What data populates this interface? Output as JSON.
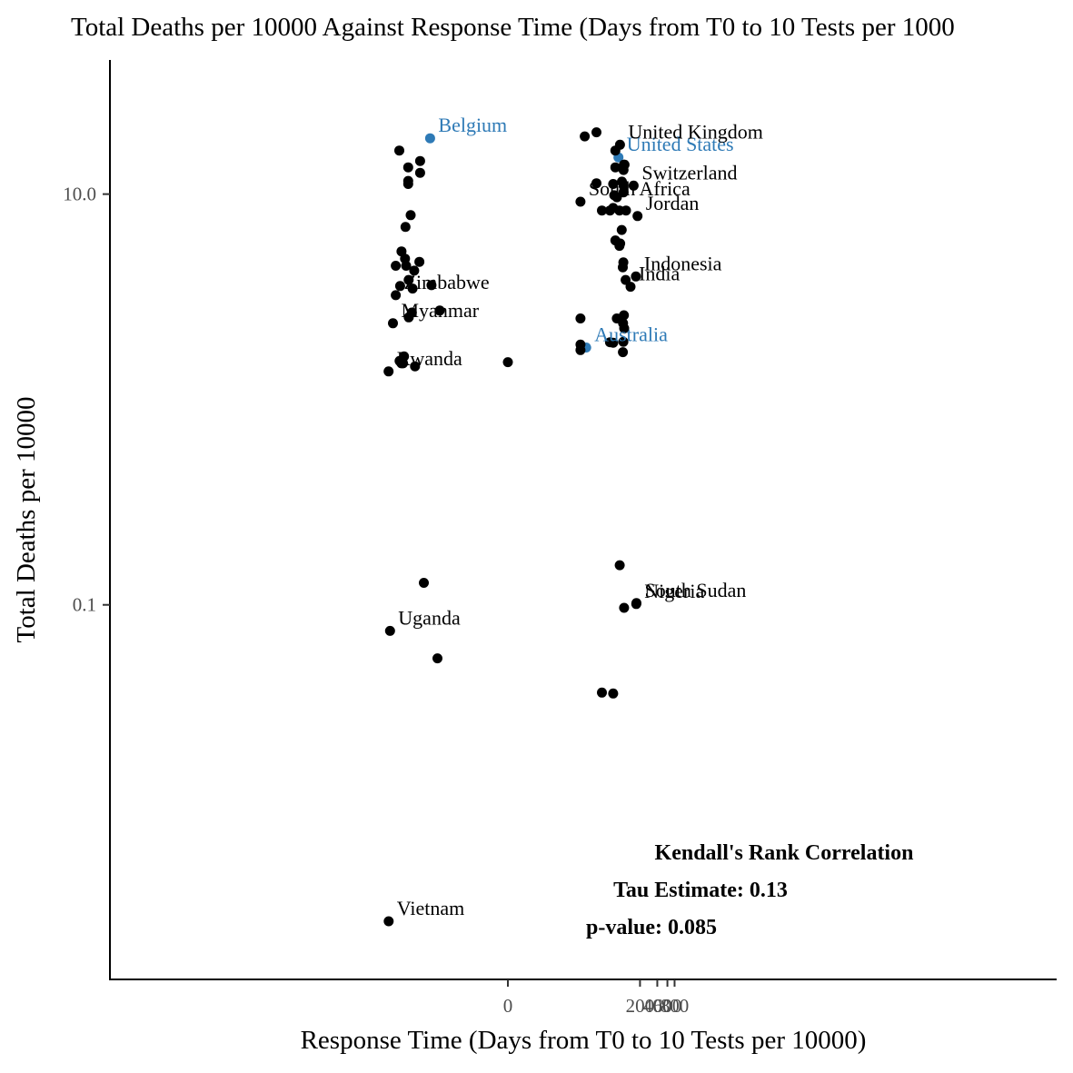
{
  "chart_data": {
    "type": "scatter",
    "title": "Total Deaths per 10000 Against Response Time (Days from T0 to 10 Tests per 1000",
    "xlabel": "Response Time (Days from T0 to 10 Tests per 10000)",
    "ylabel": "Total Deaths per 10000",
    "x_scale": "pseudo-log",
    "y_scale": "log10",
    "xlim": [
      -120,
      1000
    ],
    "ylim": [
      0.0015,
      45
    ],
    "x_ticks": [
      {
        "value": 0,
        "label": "0"
      },
      {
        "value": 200,
        "label": "200"
      },
      {
        "value": 400,
        "label": "400"
      },
      {
        "value": 600,
        "label": "600"
      },
      {
        "value": 800,
        "label": "800"
      }
    ],
    "y_ticks": [
      {
        "value": 10,
        "label": "10.0"
      },
      {
        "value": 0.1,
        "label": "0.1"
      }
    ],
    "grid": false,
    "highlight_color": "#2e7ab6",
    "point_color": "#000000",
    "annotation": {
      "heading": "Kendall's Rank Correlation",
      "tau": "Tau Estimate: 0.13",
      "p": "p-value: 0.085"
    },
    "points": [
      {
        "x": -22.6,
        "y": 18.7,
        "label": "Belgium",
        "highlight": true
      },
      {
        "x": 84.4,
        "y": 15.1,
        "label": "United States",
        "highlight": true
      },
      {
        "x": 23.1,
        "y": 1.79,
        "label": "Australia",
        "highlight": true
      },
      {
        "x": 89.5,
        "y": 17.4,
        "label": "United Kingdom"
      },
      {
        "x": 154.6,
        "y": 11.0,
        "label": "Switzerland"
      },
      {
        "x": 18.3,
        "y": 9.18,
        "label": "South Africa"
      },
      {
        "x": 181.2,
        "y": 7.82,
        "label": "Jordan"
      },
      {
        "x": 169.4,
        "y": 3.97,
        "label": "Indonesia"
      },
      {
        "x": 136.6,
        "y": 3.54,
        "label": "India"
      },
      {
        "x": 171.8,
        "y": 0.101,
        "label": "Nigeria"
      },
      {
        "x": 173.1,
        "y": 0.102,
        "label": "South Sudan"
      },
      {
        "x": -89.5,
        "y": 3.22,
        "label": "Zimbabwe"
      },
      {
        "x": -100.2,
        "y": 2.35,
        "label": "Myanmar"
      },
      {
        "x": -119.6,
        "y": 1.37,
        "label": "Rwanda"
      },
      {
        "x": -112.9,
        "y": 0.0747,
        "label": "Uganda"
      },
      {
        "x": -119.2,
        "y": 0.00288,
        "label": "Vietnam"
      },
      {
        "x": -77.7,
        "y": 16.3
      },
      {
        "x": -54.5,
        "y": 13.5
      },
      {
        "x": -54.5,
        "y": 11.6
      },
      {
        "x": -54.5,
        "y": 11.2
      },
      {
        "x": -33.7,
        "y": 14.5
      },
      {
        "x": -33.7,
        "y": 12.7
      },
      {
        "x": 21.8,
        "y": 19.1
      },
      {
        "x": 34.8,
        "y": 20.0
      },
      {
        "x": 34.8,
        "y": 11.3
      },
      {
        "x": 68.3,
        "y": 11.2
      },
      {
        "x": 71.2,
        "y": 9.87
      },
      {
        "x": 79.2,
        "y": 9.65
      },
      {
        "x": 43.4,
        "y": 8.32
      },
      {
        "x": 60.1,
        "y": 8.32
      },
      {
        "x": 68.3,
        "y": 8.56
      },
      {
        "x": 87.6,
        "y": 8.32
      },
      {
        "x": 74.5,
        "y": 16.3
      },
      {
        "x": 74.5,
        "y": 13.5
      },
      {
        "x": 96.8,
        "y": 11.5
      },
      {
        "x": 103.5,
        "y": 13.1
      },
      {
        "x": 103.5,
        "y": 11.0
      },
      {
        "x": 103.5,
        "y": 10.2
      },
      {
        "x": 104.7,
        "y": 13.9
      },
      {
        "x": 107.6,
        "y": 13.9
      },
      {
        "x": 113.8,
        "y": 8.32
      },
      {
        "x": -49.3,
        "y": 7.9
      },
      {
        "x": -60.7,
        "y": 6.92
      },
      {
        "x": -71.3,
        "y": 5.26
      },
      {
        "x": -61.8,
        "y": 4.85
      },
      {
        "x": -42.8,
        "y": 4.24
      },
      {
        "x": -75.2,
        "y": 3.57
      },
      {
        "x": -45.6,
        "y": 3.47
      },
      {
        "x": -53.4,
        "y": 3.82
      },
      {
        "x": -21.4,
        "y": 3.6
      },
      {
        "x": -34.7,
        "y": 4.68
      },
      {
        "x": -59.2,
        "y": 4.48
      },
      {
        "x": -89.7,
        "y": 4.48
      },
      {
        "x": -47.1,
        "y": 2.65
      },
      {
        "x": -15.3,
        "y": 2.71
      },
      {
        "x": -53.2,
        "y": 2.51
      },
      {
        "x": -64.3,
        "y": 1.62
      },
      {
        "x": -71.4,
        "y": 1.5
      },
      {
        "x": -77.0,
        "y": 1.54
      },
      {
        "x": -66.9,
        "y": 1.5
      },
      {
        "x": -41.4,
        "y": 1.45
      },
      {
        "x": -29.0,
        "y": 0.128
      },
      {
        "x": -16.8,
        "y": 0.0549
      },
      {
        "x": 0.0,
        "y": 1.52
      },
      {
        "x": 18.3,
        "y": 2.48
      },
      {
        "x": 18.3,
        "y": 1.85
      },
      {
        "x": 18.3,
        "y": 1.74
      },
      {
        "x": 43.4,
        "y": 0.0374
      },
      {
        "x": 60.1,
        "y": 1.9
      },
      {
        "x": 68.3,
        "y": 1.89
      },
      {
        "x": 68.3,
        "y": 0.037
      },
      {
        "x": 78.9,
        "y": 2.48
      },
      {
        "x": 74.5,
        "y": 5.95
      },
      {
        "x": 87.6,
        "y": 5.6
      },
      {
        "x": 90.2,
        "y": 5.75
      },
      {
        "x": 100.2,
        "y": 4.4
      },
      {
        "x": 102.4,
        "y": 4.65
      },
      {
        "x": 101.3,
        "y": 2.35
      },
      {
        "x": 102.4,
        "y": 1.91
      },
      {
        "x": 104.7,
        "y": 2.57
      },
      {
        "x": 106.1,
        "y": 2.22
      },
      {
        "x": 105.5,
        "y": 0.0967
      },
      {
        "x": 112.5,
        "y": 3.82
      },
      {
        "x": 100.7,
        "y": 1.7
      },
      {
        "x": 88.5,
        "y": 0.156
      },
      {
        "x": 96.0,
        "y": 6.69
      }
    ]
  }
}
